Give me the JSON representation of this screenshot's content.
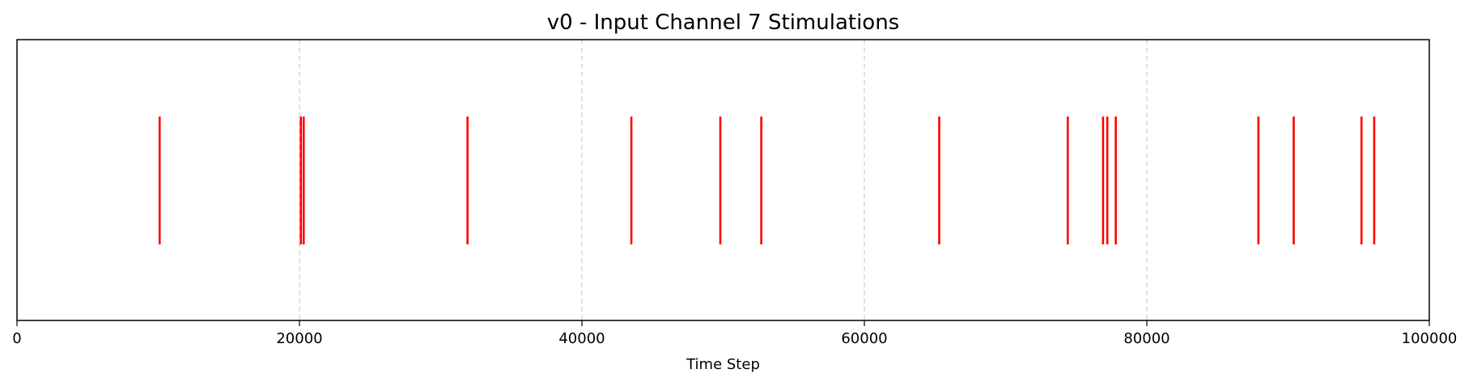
{
  "chart_data": {
    "type": "event",
    "title": "v0 - Input Channel 7 Stimulations",
    "xlabel": "Time Step",
    "ylabel": "",
    "xlim": [
      0,
      100000
    ],
    "xticks": [
      0,
      20000,
      40000,
      60000,
      80000,
      100000
    ],
    "tick_labels": [
      "0",
      "20000",
      "40000",
      "60000",
      "80000",
      "100000"
    ],
    "grid": "x-axis dashed",
    "line_color": "#ff0000",
    "grid_color": "#cccccc",
    "events": [
      10100,
      20100,
      20300,
      31900,
      43500,
      49800,
      52700,
      65300,
      74400,
      76900,
      77200,
      77800,
      87900,
      90400,
      95200,
      96100
    ]
  }
}
